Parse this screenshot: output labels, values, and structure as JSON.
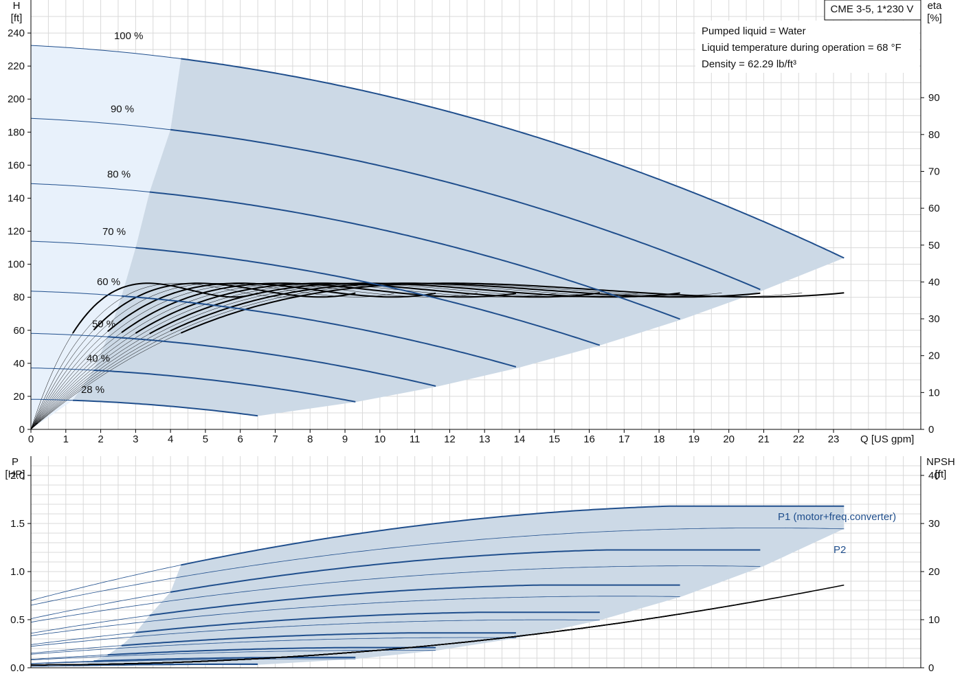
{
  "chart_data": [
    {
      "type": "line",
      "title": "CME 3-5, 1*230 V",
      "info": [
        "Pumped liquid = Water",
        "Liquid temperature during operation = 68 °F",
        "Density = 62.29 lb/ft³"
      ],
      "xlabel": "Q [US gpm]",
      "ylabel": [
        "H",
        "[ft]"
      ],
      "y2label": [
        "eta",
        "[%]"
      ],
      "xlim": [
        0,
        25.5
      ],
      "ylim": [
        0,
        260
      ],
      "y2lim": [
        0,
        116.5
      ],
      "x_ticks": [
        "0",
        "1",
        "2",
        "3",
        "4",
        "5",
        "6",
        "7",
        "8",
        "9",
        "10",
        "11",
        "12",
        "13",
        "14",
        "15",
        "16",
        "17",
        "18",
        "19",
        "20",
        "21",
        "22",
        "23"
      ],
      "y_ticks": [
        "0",
        "20",
        "40",
        "60",
        "80",
        "100",
        "120",
        "140",
        "160",
        "180",
        "200",
        "220",
        "240"
      ],
      "y2_ticks": [
        "0",
        "10",
        "20",
        "30",
        "40",
        "50",
        "60",
        "70",
        "80",
        "90"
      ],
      "grid": true,
      "colors": {
        "curve": "#1f4e8c",
        "area": "#ccd9e6",
        "area_light": "#e8f1fb",
        "eta": "#000000"
      },
      "series": [
        {
          "name": "100 %",
          "speed": 1.0,
          "q_max": 23.3,
          "h0": 232.5
        },
        {
          "name": "90 %",
          "speed": 0.9,
          "q_max": 21.1,
          "h0": 188.5
        },
        {
          "name": "80 %",
          "speed": 0.8,
          "q_max": 18.8,
          "h0": 149.5
        },
        {
          "name": "70 %",
          "speed": 0.7,
          "q_max": 16.5,
          "h0": 114.2
        },
        {
          "name": "60 %",
          "speed": 0.6,
          "q_max": 14.1,
          "h0": 84.3
        },
        {
          "name": "50 %",
          "speed": 0.5,
          "q_max": 11.7,
          "h0": 58.3
        },
        {
          "name": "40 %",
          "speed": 0.4,
          "q_max": 9.4,
          "h0": 37.6
        },
        {
          "name": "28 %",
          "speed": 0.28,
          "q_max": 6.6,
          "h0": 18.4
        }
      ]
    },
    {
      "type": "line",
      "xlim": [
        0,
        25.5
      ],
      "ylabel": [
        "P",
        "[HP]"
      ],
      "y2label": [
        "NPSH",
        "[ft]"
      ],
      "ylim": [
        0,
        2.2
      ],
      "y2lim": [
        0,
        44
      ],
      "y_ticks": [
        "0.0",
        "0.5",
        "1.0",
        "1.5",
        "2.0"
      ],
      "y2_ticks": [
        "0",
        "10",
        "20",
        "30",
        "40"
      ],
      "grid": true,
      "series": [
        {
          "name": "P1 (motor+freq.converter)",
          "p0_full": 0.7,
          "p_full_max": 1.68
        },
        {
          "name": "P2",
          "p0_full": 0.65,
          "p_full_max": 1.47
        }
      ],
      "npsh": {
        "q_max": 23.3,
        "npsh_max": 17.2
      }
    }
  ]
}
